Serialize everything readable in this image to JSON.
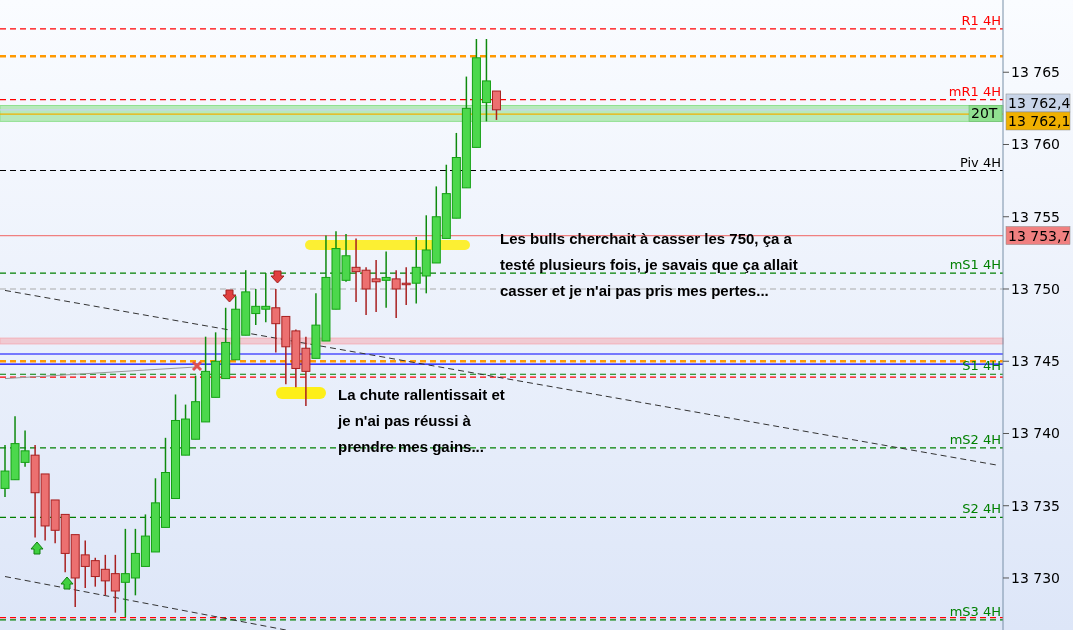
{
  "chart_data": {
    "type": "candlestick",
    "tick_labels": "y",
    "categories": [
      null,
      null,
      null,
      null,
      null,
      null,
      null,
      null,
      null,
      null,
      null,
      null,
      null,
      null,
      null,
      null,
      null,
      null,
      null,
      null,
      null,
      null,
      null,
      null,
      null,
      null,
      null,
      null,
      null,
      null,
      null,
      null,
      null,
      null,
      null,
      null,
      null,
      null,
      null,
      null,
      null,
      null,
      null,
      null,
      null,
      null,
      null,
      null,
      null,
      null,
      null,
      null,
      null,
      null,
      null,
      null,
      null,
      null,
      null,
      null,
      null,
      null,
      null,
      null,
      null,
      null,
      null,
      null,
      null,
      null,
      null,
      null,
      null,
      null,
      null,
      null,
      null,
      null,
      null,
      null,
      null,
      null,
      null,
      null,
      null,
      null,
      null,
      null,
      null,
      null,
      null,
      null,
      null,
      null,
      null,
      null,
      null,
      null,
      null,
      null
    ],
    "ohlc": [
      [
        13736.2,
        13739.2,
        13735.6,
        13737.4
      ],
      [
        13736.8,
        13741.2,
        13736.8,
        13739.3
      ],
      [
        13738.0,
        13740.2,
        13737.7,
        13738.8
      ],
      [
        13738.5,
        13739.2,
        13732.8,
        13735.9
      ],
      [
        13737.2,
        13737.2,
        13732.6,
        13733.6
      ],
      [
        13735.4,
        13735.4,
        13732.4,
        13733.3
      ],
      [
        13734.4,
        13734.4,
        13730.4,
        13731.7
      ],
      [
        13733.0,
        13733.0,
        13728.0,
        13730.0
      ],
      [
        13731.6,
        13732.6,
        13729.3,
        13730.8
      ],
      [
        13731.2,
        13731.4,
        13729.4,
        13730.1
      ],
      [
        13730.6,
        13731.6,
        13728.8,
        13729.8
      ],
      [
        13730.3,
        13731.6,
        13727.6,
        13729.1
      ],
      [
        13729.7,
        13733.4,
        13727.3,
        13730.3
      ],
      [
        13730.0,
        13733.4,
        13728.8,
        13731.7
      ],
      [
        13730.8,
        13734.4,
        13730.8,
        13732.9
      ],
      [
        13731.8,
        13736.9,
        13731.8,
        13735.2
      ],
      [
        13733.5,
        13739.7,
        13733.5,
        13737.3
      ],
      [
        13735.5,
        13742.7,
        13735.5,
        13740.9
      ],
      [
        13738.5,
        13742.0,
        13738.5,
        13741.0
      ],
      [
        13739.6,
        13744.0,
        13739.6,
        13742.2
      ],
      [
        13740.8,
        13746.7,
        13740.8,
        13744.3
      ],
      [
        13742.5,
        13747.0,
        13742.5,
        13745.0
      ],
      [
        13743.8,
        13748.7,
        13743.8,
        13746.3
      ],
      [
        13745.1,
        13749.5,
        13745.1,
        13748.6
      ],
      [
        13746.8,
        13751.3,
        13746.8,
        13749.8
      ],
      [
        13748.3,
        13750.0,
        13747.5,
        13748.8
      ],
      [
        13748.6,
        13751.1,
        13747.7,
        13748.8
      ],
      [
        13748.7,
        13750.0,
        13745.6,
        13747.6
      ],
      [
        13748.1,
        13748.1,
        13743.4,
        13746.0
      ],
      [
        13747.1,
        13747.2,
        13743.2,
        13744.5
      ],
      [
        13745.9,
        13746.7,
        13741.9,
        13744.3
      ],
      [
        13745.2,
        13749.7,
        13745.2,
        13747.5
      ],
      [
        13746.4,
        13753.7,
        13746.4,
        13750.8
      ],
      [
        13748.6,
        13754.0,
        13748.6,
        13752.8
      ],
      [
        13750.6,
        13753.8,
        13750.5,
        13752.3
      ],
      [
        13751.5,
        13753.5,
        13749.1,
        13751.2
      ],
      [
        13751.3,
        13751.5,
        13748.2,
        13750.0
      ],
      [
        13750.7,
        13752.0,
        13748.4,
        13750.5
      ],
      [
        13750.6,
        13752.6,
        13748.7,
        13750.8
      ],
      [
        13750.7,
        13751.3,
        13748.0,
        13750.0
      ],
      [
        13750.4,
        13751.5,
        13748.9,
        13750.3
      ],
      [
        13750.4,
        13753.6,
        13749.0,
        13751.5
      ],
      [
        13750.9,
        13755.1,
        13749.7,
        13752.7
      ],
      [
        13751.8,
        13757.1,
        13751.8,
        13755.0
      ],
      [
        13753.5,
        13758.6,
        13753.5,
        13756.6
      ],
      [
        13754.9,
        13760.8,
        13754.9,
        13759.1
      ],
      [
        13757.0,
        13764.7,
        13757.0,
        13762.5
      ],
      [
        13759.8,
        13767.3,
        13759.8,
        13766.0
      ],
      [
        13762.9,
        13767.3,
        13761.6,
        13764.4
      ],
      [
        13763.7,
        13763.7,
        13761.7,
        13762.4
      ],
      null,
      null,
      null,
      null,
      null,
      null,
      null,
      null,
      null,
      null,
      null,
      null,
      null,
      null,
      null,
      null,
      null,
      null,
      null,
      null,
      null,
      null,
      null,
      null,
      null,
      null,
      null,
      null,
      null,
      null,
      null,
      null,
      null,
      null,
      null,
      null,
      null,
      null,
      null,
      null,
      null,
      null,
      null,
      null,
      null,
      null,
      null,
      null,
      null,
      null
    ],
    "ylim": [
      13726.4,
      13770
    ],
    "yticks": [
      {
        "value": 13730,
        "label": "13 730"
      },
      {
        "value": 13735,
        "label": "13 735"
      },
      {
        "value": 13740,
        "label": "13 740"
      },
      {
        "value": 13745,
        "label": "13 745"
      },
      {
        "value": 13750,
        "label": "13 750"
      },
      {
        "value": 13755,
        "label": "13 755"
      },
      {
        "value": 13760,
        "label": "13 760"
      },
      {
        "value": 13765,
        "label": "13 765"
      }
    ],
    "series": [
      {
        "type": "line",
        "values": [
          13749.9,
          null,
          null,
          null,
          null,
          null,
          null,
          null,
          null,
          null,
          null,
          null,
          null,
          null,
          null,
          null,
          null,
          null,
          null,
          null,
          null,
          null,
          null,
          null,
          null,
          null,
          null,
          null,
          null,
          null,
          null,
          null,
          null,
          null,
          null,
          null,
          null,
          null,
          null,
          null,
          null,
          null,
          null,
          null,
          null,
          null,
          null,
          null,
          null,
          null,
          null,
          null,
          null,
          null,
          null,
          null,
          null,
          null,
          null,
          null,
          null,
          null,
          null,
          null,
          null,
          null,
          null,
          null,
          null,
          null,
          null,
          null,
          null,
          null,
          null,
          null,
          null,
          null,
          null,
          null,
          null,
          null,
          null,
          null,
          null,
          null,
          null,
          null,
          null,
          null,
          null,
          null,
          null,
          null,
          null,
          null,
          null,
          null,
          null,
          13737.8
        ],
        "color": "#333333",
        "line_style": "dashed"
      },
      {
        "type": "line",
        "values": [
          13730.1,
          null,
          null,
          null,
          null,
          null,
          null,
          null,
          null,
          null,
          null,
          null,
          null,
          null,
          null,
          null,
          null,
          null,
          null,
          null,
          null,
          null,
          null,
          null,
          null,
          null,
          null,
          null,
          13726.4,
          null,
          null,
          null,
          null,
          null,
          null,
          null,
          null,
          null,
          null,
          null,
          null,
          null,
          null,
          null,
          null,
          null,
          null,
          null,
          null,
          null,
          null,
          null,
          null,
          null,
          null,
          null,
          null,
          null,
          null,
          null,
          null,
          null,
          null,
          null,
          null,
          null,
          null,
          null,
          null,
          null,
          null,
          null,
          null,
          null,
          null,
          null,
          null,
          null,
          null,
          null,
          null,
          null,
          null,
          null,
          null,
          null,
          null,
          null,
          null,
          null,
          null,
          null,
          null,
          null,
          null,
          null,
          null,
          null,
          null,
          null
        ],
        "color": "#333333",
        "line_style": "dashed"
      },
      {
        "type": "line",
        "values": [
          13743.8,
          null,
          null,
          null,
          null,
          null,
          null,
          null,
          null,
          null,
          null,
          null,
          null,
          null,
          null,
          null,
          null,
          null,
          null,
          13744.6,
          null,
          null,
          null,
          null,
          null,
          null,
          null,
          null,
          null,
          null,
          null,
          null,
          null,
          null,
          null,
          null,
          null,
          null,
          null,
          null,
          null,
          null,
          null,
          null,
          null,
          null,
          null,
          null,
          null,
          null,
          null,
          null,
          null,
          null,
          null,
          null,
          null,
          null,
          null,
          null,
          null,
          null,
          null,
          null,
          null,
          null,
          null,
          null,
          null,
          null,
          null,
          null,
          null,
          null,
          null,
          null,
          null,
          null,
          null,
          null,
          null,
          null,
          null,
          null,
          null,
          null,
          null,
          null,
          null,
          null,
          null,
          null,
          null,
          null,
          null,
          null,
          null,
          null,
          null,
          null
        ],
        "color": "#999999",
        "line_style": "solid"
      }
    ],
    "bands": [
      {
        "axis": "y",
        "from": 13761.6,
        "to": 13762.7,
        "label": "20T",
        "color": "#90e090"
      },
      {
        "axis": "y",
        "from": 13746.2,
        "to": 13746.6,
        "color": "#f4b0b8"
      }
    ],
    "ref_lines": [
      {
        "axis": "y",
        "value": 13768.0,
        "label": "R1 4H",
        "color": "#ff0000",
        "line_style": "dashed"
      },
      {
        "axis": "y",
        "value": 13766.1,
        "color": "#ff9900",
        "line_style": "dashed"
      },
      {
        "axis": "y",
        "value": 13763.1,
        "label": "mR1 4H",
        "color": "#ff0000",
        "line_style": "dashed"
      },
      {
        "axis": "y",
        "value": 13762.4,
        "label": "13 762,4",
        "color": "#c8d4e8",
        "line_style": "solid"
      },
      {
        "axis": "y",
        "value": 13762.1,
        "label": "13 762,1",
        "color": "#f0b000",
        "line_style": "solid"
      },
      {
        "axis": "y",
        "value": 13758.2,
        "label": "Piv 4H",
        "color": "#000000",
        "line_style": "dashed"
      },
      {
        "axis": "y",
        "value": 13753.7,
        "label": "13 753,7",
        "color": "#f08080",
        "line_style": "solid"
      },
      {
        "axis": "y",
        "value": 13751.1,
        "label": "mS1 4H",
        "color": "#008000",
        "line_style": "dashed"
      },
      {
        "axis": "y",
        "value": 13750.0,
        "color": "#aaaaaa",
        "line_style": "dashed"
      },
      {
        "axis": "y",
        "value": 13745.5,
        "color": "#0000ff",
        "line_style": "solid"
      },
      {
        "axis": "y",
        "value": 13745.0,
        "color": "#ff9900",
        "line_style": "dashed"
      },
      {
        "axis": "y",
        "value": 13744.8,
        "color": "#0000ff",
        "line_style": "solid"
      },
      {
        "axis": "y",
        "value": 13744.1,
        "label": "S1 4H",
        "color": "#008000",
        "line_style": "dashed"
      },
      {
        "axis": "y",
        "value": 13743.9,
        "color": "#ff0000",
        "line_style": "dashed"
      },
      {
        "axis": "y",
        "value": 13739.0,
        "label": "mS2 4H",
        "color": "#008000",
        "line_style": "dashed"
      },
      {
        "axis": "y",
        "value": 13734.2,
        "label": "S2 4H",
        "color": "#008000",
        "line_style": "dashed"
      },
      {
        "axis": "y",
        "value": 13727.25,
        "color": "#ff0000",
        "line_style": "dashed"
      },
      {
        "axis": "y",
        "value": 13727.1,
        "label": "mS3 4H",
        "color": "#008000",
        "line_style": "dashed"
      }
    ],
    "annotations": [
      "Les bulls cherchait à casser les 750, ça a testé plusieurs fois, je savais que ça allait casser et je n'ai pas pris mes pertes...",
      "La chute rallentissait et je n'ai pas réussi à prendre mes gains..."
    ]
  }
}
